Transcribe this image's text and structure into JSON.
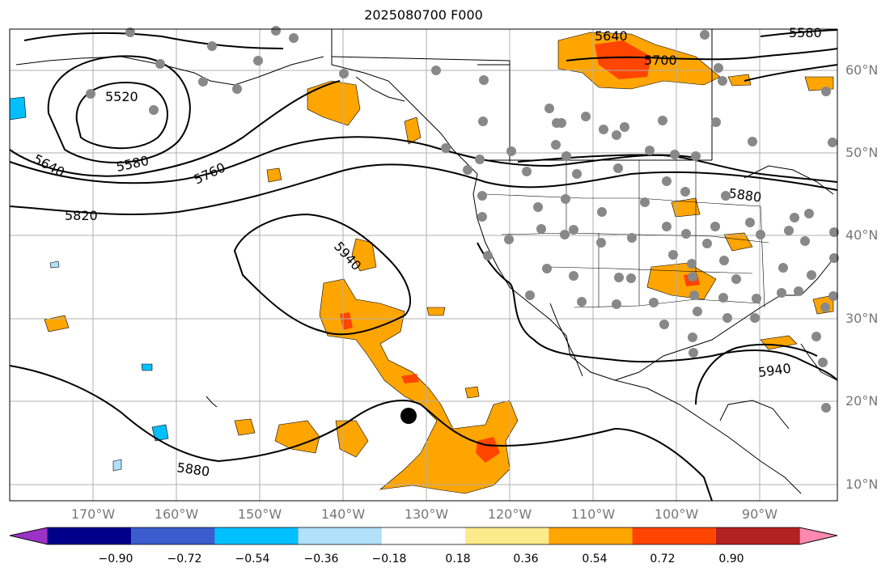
{
  "title": "2025080700 F000",
  "lon_ticks": [
    "170°W",
    "160°W",
    "150°W",
    "140°W",
    "130°W",
    "120°W",
    "110°W",
    "100°W",
    "90°W"
  ],
  "lat_ticks": [
    "60°N",
    "50°N",
    "40°N",
    "30°N",
    "20°N",
    "10°N"
  ],
  "colorbar": {
    "labels": [
      "−0.90",
      "−0.72",
      "−0.54",
      "−0.36",
      "−0.18",
      "0.18",
      "0.36",
      "0.54",
      "0.72",
      "0.90"
    ],
    "colors": [
      "#9b32c8",
      "#00008b",
      "#3a5ccc",
      "#00bfff",
      "#b0e0fa",
      "#ffffff",
      "#fdea8a",
      "#ffa500",
      "#ff4500",
      "#b22222",
      "#ff88b0"
    ]
  },
  "contour_labels": [
    "5520",
    "5580",
    "5640",
    "5640",
    "5700",
    "5760",
    "5820",
    "5880",
    "5880",
    "5940",
    "5940",
    "5580"
  ],
  "colors": {
    "positive_light": "#fdea8a",
    "positive_mid": "#ffa500",
    "positive_high": "#ff4500",
    "negative_light": "#b0e0fa",
    "negative_mid": "#00bfff",
    "station": "#888888",
    "grid": "#b0b0b0"
  },
  "marker": "storm-center-dot"
}
